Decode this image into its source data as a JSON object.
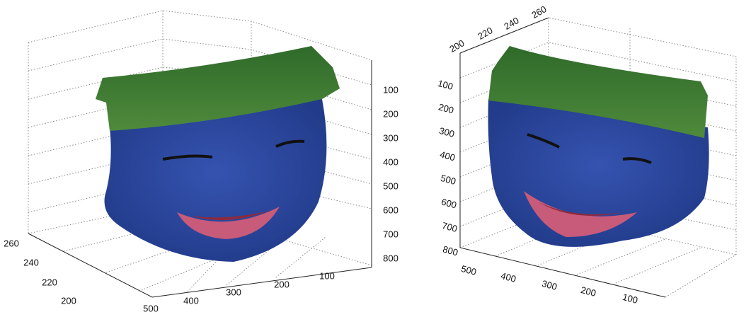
{
  "panels": [
    {
      "z_ticks": [
        "100",
        "200",
        "300",
        "400",
        "500",
        "600",
        "700",
        "800"
      ],
      "x_ticks": [
        "500",
        "400",
        "300",
        "200",
        "100"
      ],
      "y_ticks": [
        "260",
        "240",
        "220",
        "200"
      ]
    },
    {
      "z_ticks": [
        "100",
        "200",
        "300",
        "400",
        "500",
        "600",
        "700",
        "800"
      ],
      "x_ticks": [
        "500",
        "400",
        "300",
        "200",
        "100"
      ],
      "y_ticks": [
        "200",
        "220",
        "240",
        "260"
      ]
    }
  ]
}
